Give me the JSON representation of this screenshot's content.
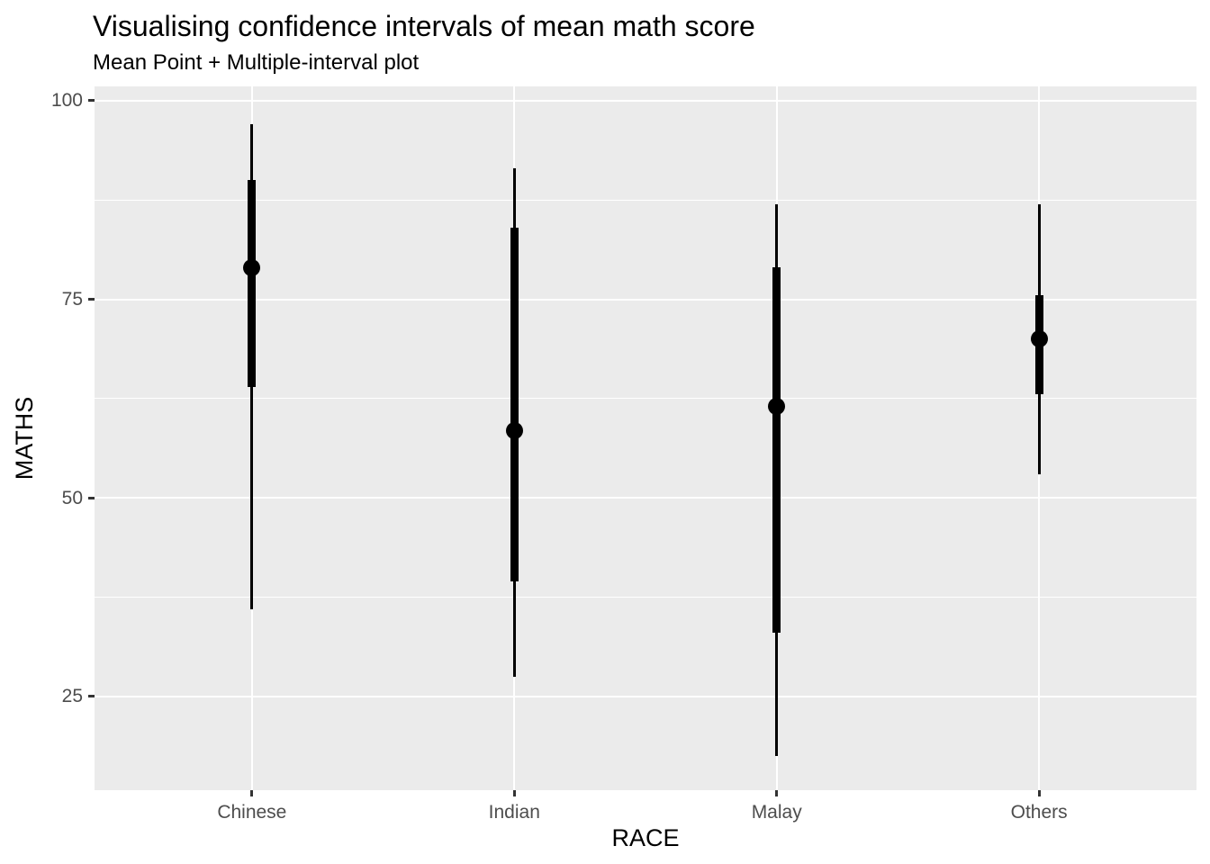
{
  "chart_data": {
    "type": "scatter",
    "subtype": "point-with-multiple-intervals",
    "title": "Visualising confidence intervals of mean math score",
    "subtitle": "Mean Point + Multiple-interval plot",
    "xlabel": "RACE",
    "ylabel": "MATHS",
    "categories": [
      "Chinese",
      "Indian",
      "Malay",
      "Others"
    ],
    "points": [
      {
        "category": "Chinese",
        "mean": 79.0,
        "thick_interval": [
          64.0,
          90.0
        ],
        "thin_interval": [
          36.0,
          97.0
        ]
      },
      {
        "category": "Indian",
        "mean": 58.5,
        "thick_interval": [
          39.5,
          84.0
        ],
        "thin_interval": [
          27.5,
          91.5
        ]
      },
      {
        "category": "Malay",
        "mean": 61.5,
        "thick_interval": [
          33.0,
          79.0
        ],
        "thin_interval": [
          17.5,
          87.0
        ]
      },
      {
        "category": "Others",
        "mean": 70.0,
        "thick_interval": [
          63.0,
          75.5
        ],
        "thin_interval": [
          53.0,
          87.0
        ]
      }
    ],
    "y_ticks": [
      100,
      75,
      50,
      25
    ],
    "y_minor_gridlines": [
      87.5,
      62.5,
      37.5
    ],
    "ylim": [
      13.2,
      101.8
    ],
    "grid": true,
    "legend_position": "none",
    "colors": {
      "panel_background": "#EBEBEB",
      "gridline": "#FFFFFF",
      "data": "#000000",
      "tick_label": "#4D4D4D",
      "tick_mark": "#333333",
      "text": "#000000"
    }
  }
}
